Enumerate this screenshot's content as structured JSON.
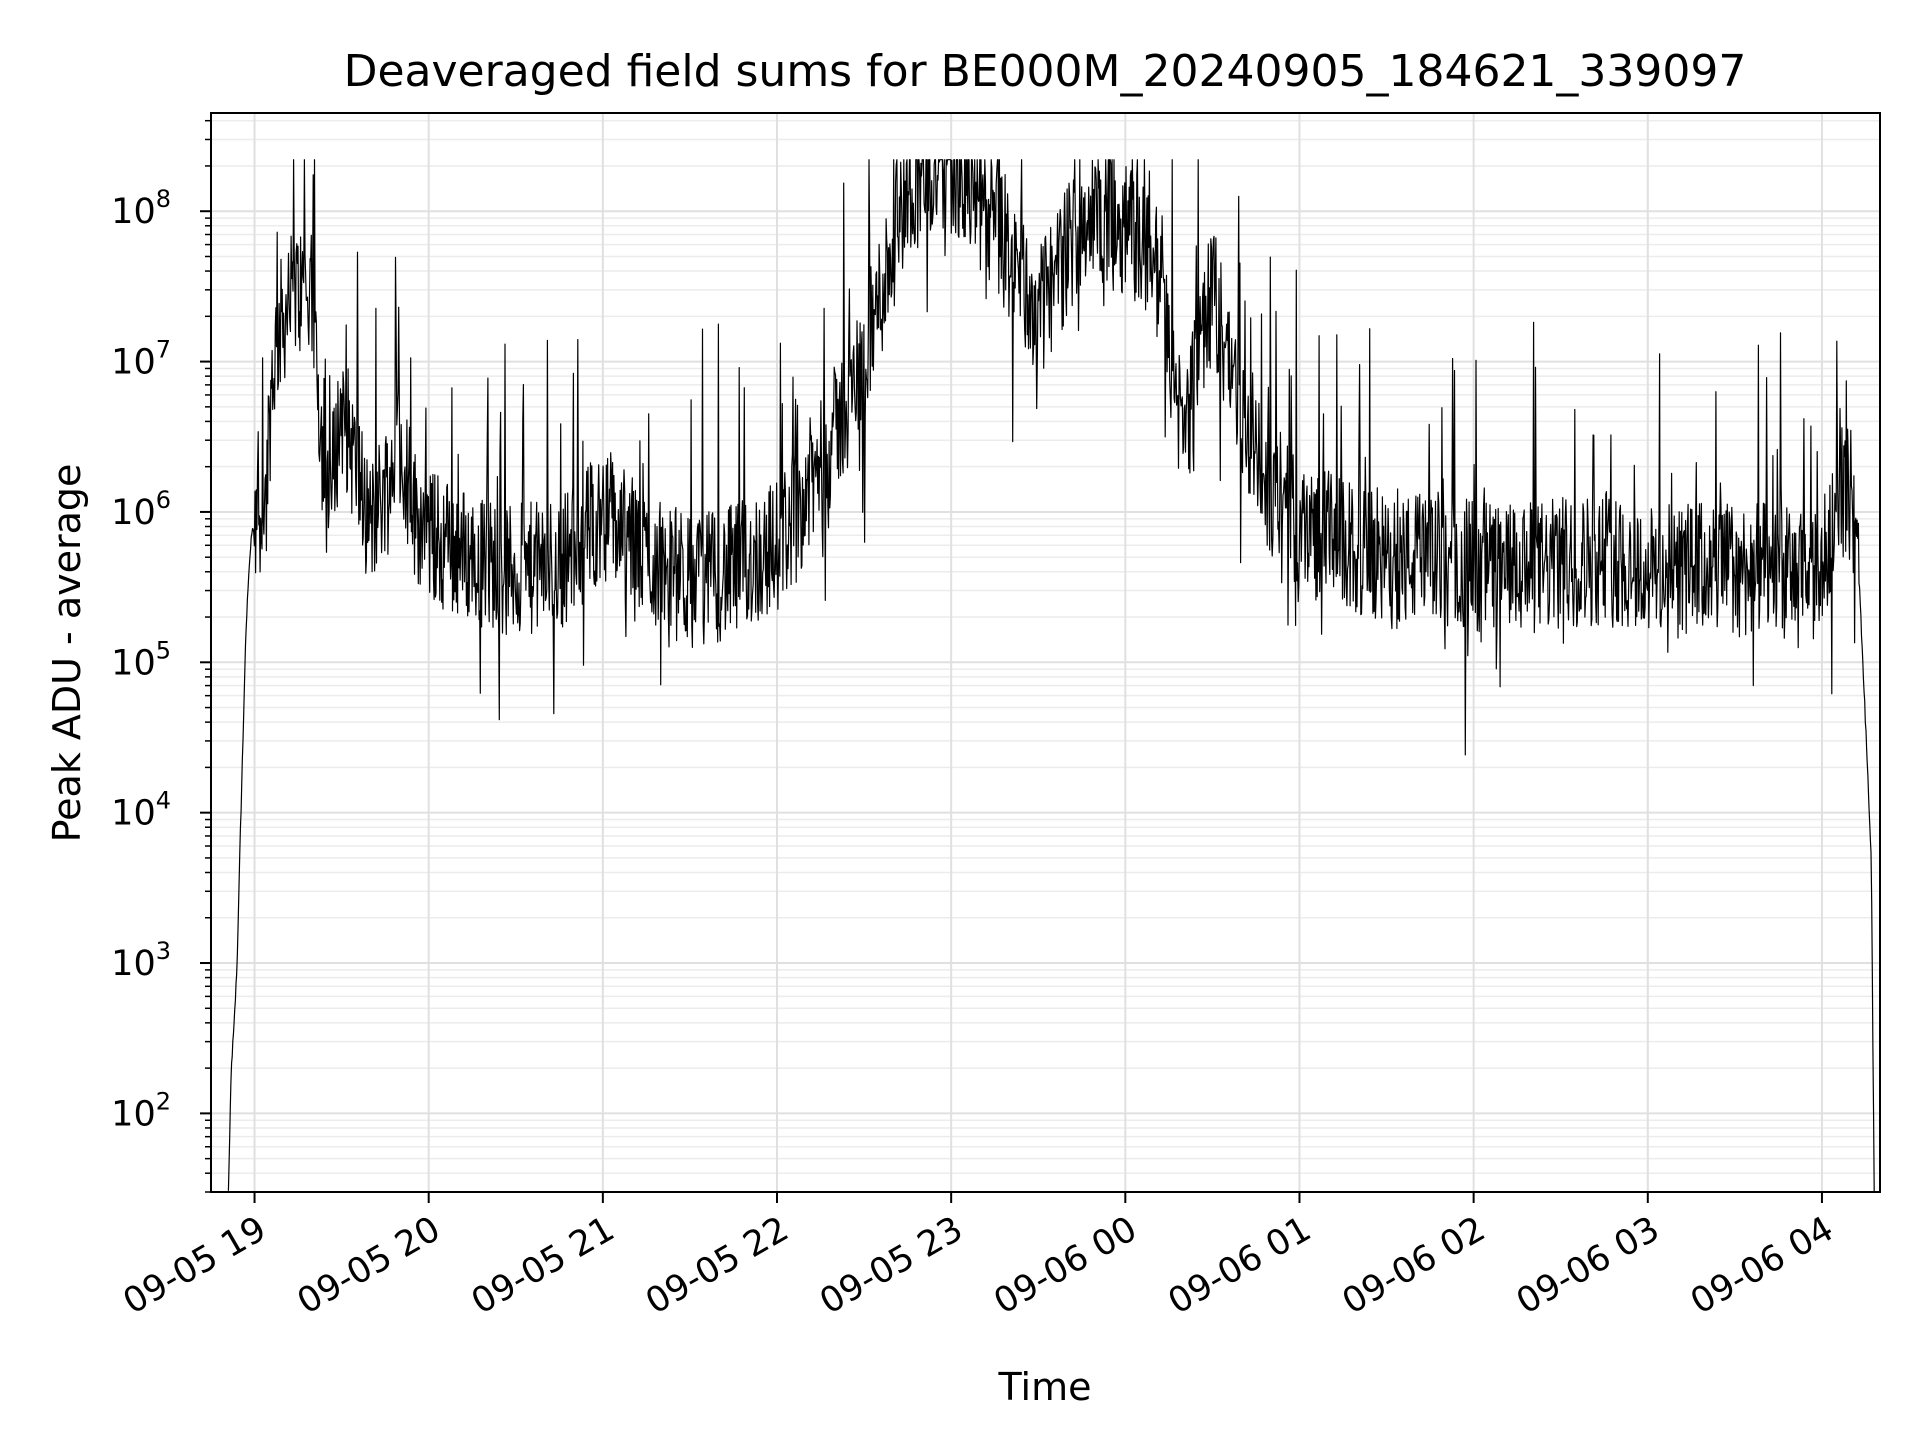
{
  "chart_data": {
    "type": "line",
    "title": "Deaveraged field sums for BE000M_20240905_184621_339097",
    "xlabel": "Time",
    "ylabel": "Peak ADU - average",
    "yscale": "log",
    "xlim": [
      "2024-09-05 18:45",
      "2024-09-06 04:20"
    ],
    "ylim": [
      30,
      450000000
    ],
    "grid": true,
    "x_ticks": [
      {
        "value": "2024-09-05 19:00",
        "label": "09-05 19"
      },
      {
        "value": "2024-09-05 20:00",
        "label": "09-05 20"
      },
      {
        "value": "2024-09-05 21:00",
        "label": "09-05 21"
      },
      {
        "value": "2024-09-05 22:00",
        "label": "09-05 22"
      },
      {
        "value": "2024-09-05 23:00",
        "label": "09-05 23"
      },
      {
        "value": "2024-09-06 00:00",
        "label": "09-06 00"
      },
      {
        "value": "2024-09-06 01:00",
        "label": "09-06 01"
      },
      {
        "value": "2024-09-06 02:00",
        "label": "09-06 02"
      },
      {
        "value": "2024-09-06 03:00",
        "label": "09-06 03"
      },
      {
        "value": "2024-09-06 04:00",
        "label": "09-06 04"
      }
    ],
    "y_ticks": [
      {
        "value": 100,
        "base": "10",
        "exp": "2"
      },
      {
        "value": 1000,
        "base": "10",
        "exp": "3"
      },
      {
        "value": 10000,
        "base": "10",
        "exp": "4"
      },
      {
        "value": 100000,
        "base": "10",
        "exp": "5"
      },
      {
        "value": 1000000,
        "base": "10",
        "exp": "6"
      },
      {
        "value": 10000000,
        "base": "10",
        "exp": "7"
      },
      {
        "value": 100000000,
        "base": "10",
        "exp": "8"
      }
    ],
    "series": [
      {
        "color": "#000000",
        "x": [
          "2024-09-05 18:51",
          "2024-09-05 18:52",
          "2024-09-05 18:53",
          "2024-09-05 18:54",
          "2024-09-05 18:55",
          "2024-09-05 18:56",
          "2024-09-05 18:57",
          "2024-09-05 18:58",
          "2024-09-05 18:59",
          "2024-09-05 19:00",
          "2024-09-05 19:02",
          "2024-09-05 19:04",
          "2024-09-05 19:06",
          "2024-09-05 19:08",
          "2024-09-05 19:10",
          "2024-09-05 19:15",
          "2024-09-05 19:20",
          "2024-09-05 19:25",
          "2024-09-05 19:30",
          "2024-09-05 19:35",
          "2024-09-05 19:40",
          "2024-09-05 19:45",
          "2024-09-05 19:50",
          "2024-09-05 19:55",
          "2024-09-05 20:00",
          "2024-09-05 20:15",
          "2024-09-05 20:30",
          "2024-09-05 20:45",
          "2024-09-05 21:00",
          "2024-09-05 21:15",
          "2024-09-05 21:30",
          "2024-09-05 21:45",
          "2024-09-05 22:00",
          "2024-09-05 22:15",
          "2024-09-05 22:30",
          "2024-09-05 22:45",
          "2024-09-05 23:00",
          "2024-09-05 23:15",
          "2024-09-05 23:30",
          "2024-09-05 23:45",
          "2024-09-06 00:00",
          "2024-09-06 00:10",
          "2024-09-06 00:20",
          "2024-09-06 00:30",
          "2024-09-06 00:45",
          "2024-09-06 01:00",
          "2024-09-06 01:15",
          "2024-09-06 01:30",
          "2024-09-06 01:45",
          "2024-09-06 02:00",
          "2024-09-06 02:15",
          "2024-09-06 02:30",
          "2024-09-06 02:45",
          "2024-09-06 03:00",
          "2024-09-06 03:15",
          "2024-09-06 03:30",
          "2024-09-06 03:45",
          "2024-09-06 04:00",
          "2024-09-06 04:05",
          "2024-09-06 04:10",
          "2024-09-06 04:13",
          "2024-09-06 04:15",
          "2024-09-06 04:17",
          "2024-09-06 04:18"
        ],
        "values": [
          30,
          200,
          400,
          1000,
          6000,
          30000,
          150000,
          400000,
          700000,
          900000,
          1000000,
          1200000,
          8000000,
          15000000,
          20000000,
          30000000,
          25000000,
          900000,
          5000000,
          2000000,
          800000,
          1500000,
          3000000,
          1000000,
          700000,
          500000,
          400000,
          450000,
          1000000,
          500000,
          350000,
          400000,
          600000,
          2000000,
          10000000,
          150000000,
          200000000,
          80000000,
          20000000,
          90000000,
          80000000,
          50000000,
          3000000,
          30000000,
          2000000,
          800000,
          600000,
          450000,
          500000,
          450000,
          400000,
          450000,
          500000,
          400000,
          420000,
          430000,
          400000,
          350000,
          1500000,
          1300000,
          300000,
          40000,
          5000,
          30
        ]
      }
    ]
  }
}
